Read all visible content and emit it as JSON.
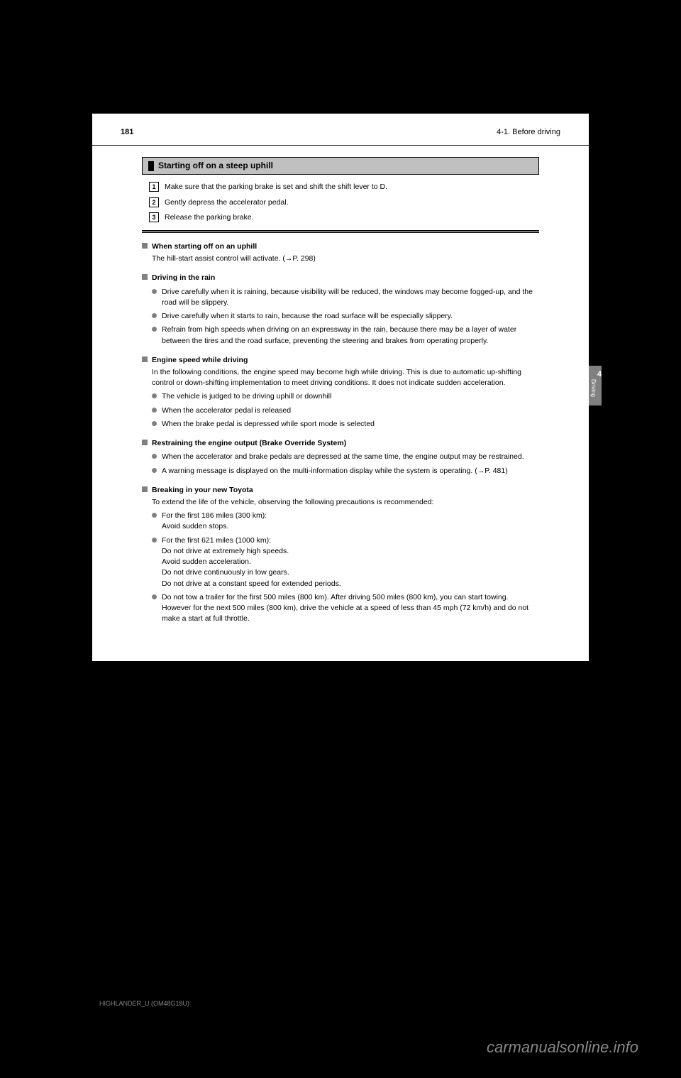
{
  "header": {
    "page_number": "181",
    "section": "4-1. Before driving"
  },
  "sidebar": {
    "chapter": "4",
    "label": "Driving"
  },
  "section_title": "Starting off on a steep uphill",
  "steps": [
    {
      "num": "1",
      "text": "Make sure that the parking brake is set and shift the shift lever to D."
    },
    {
      "num": "2",
      "text": "Gently depress the accelerator pedal."
    },
    {
      "num": "3",
      "text": "Release the parking brake."
    }
  ],
  "info": [
    {
      "heading": "When starting off on an uphill",
      "body": "The hill-start assist control will activate. (→P. 298)",
      "bullets": []
    },
    {
      "heading": "Driving in the rain",
      "body": "",
      "bullets": [
        "Drive carefully when it is raining, because visibility will be reduced, the windows may become fogged-up, and the road will be slippery.",
        "Drive carefully when it starts to rain, because the road surface will be especially slippery.",
        "Refrain from high speeds when driving on an expressway in the rain, because there may be a layer of water between the tires and the road surface, preventing the steering and brakes from operating properly."
      ]
    },
    {
      "heading": "Engine speed while driving",
      "body": "In the following conditions, the engine speed may become high while driving. This is due to automatic up-shifting control or down-shifting implementation to meet driving conditions. It does not indicate sudden acceleration.",
      "bullets": [
        "The vehicle is judged to be driving uphill or downhill",
        "When the accelerator pedal is released",
        "When the brake pedal is depressed while sport mode is selected"
      ]
    },
    {
      "heading": "Restraining the engine output (Brake Override System)",
      "body": "",
      "bullets": [
        "When the accelerator and brake pedals are depressed at the same time, the engine output may be restrained.",
        "A warning message is displayed on the multi-information display while the system is operating. (→P. 481)"
      ]
    },
    {
      "heading": "Breaking in your new Toyota",
      "body": "To extend the life of the vehicle, observing the following precautions is recommended:",
      "bullets": [
        "For the first 186 miles (300 km):\nAvoid sudden stops.",
        "For the first 621 miles (1000 km):\nDo not drive at extremely high speeds.\nAvoid sudden acceleration.\nDo not drive continuously in low gears.\nDo not drive at a constant speed for extended periods.",
        "Do not tow a trailer for the first 500 miles (800 km). After driving 500 miles (800 km), you can start towing. However for the next 500 miles (800 km), drive the vehicle at a speed of less than 45 mph (72 km/h) and do not make a start at full throttle."
      ]
    }
  ],
  "footer_code": "HIGHLANDER_U (OM48G18U)",
  "watermark": "carmanualsonline.info"
}
